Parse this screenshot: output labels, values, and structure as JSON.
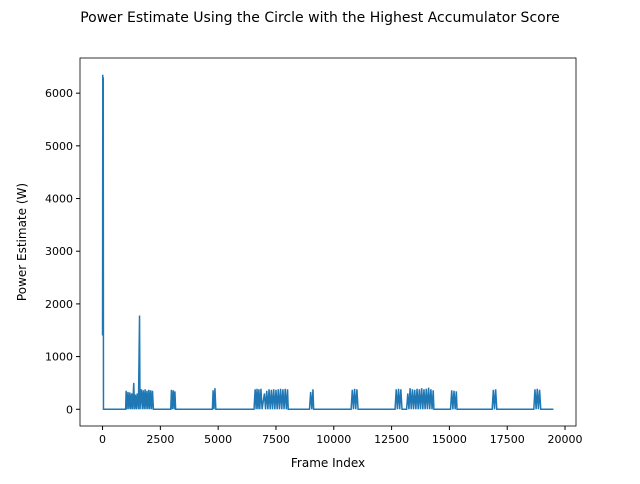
{
  "chart_data": {
    "type": "line",
    "title": "Power Estimate Using the Circle with the Highest Accumulator Score",
    "xlabel": "Frame Index",
    "ylabel": "Power Estimate (W)",
    "x": [
      0,
      10,
      20,
      30,
      40,
      1000,
      1020,
      1060,
      1100,
      1140,
      1180,
      1220,
      1260,
      1300,
      1350,
      1380,
      1420,
      1460,
      1500,
      1550,
      1600,
      1620,
      1680,
      1720,
      1760,
      1800,
      1840,
      1880,
      1920,
      1960,
      2000,
      2040,
      2080,
      2120,
      2160,
      2200,
      2950,
      2980,
      3020,
      3060,
      3100,
      3130,
      3160,
      4750,
      4780,
      4820,
      4860,
      4900,
      6550,
      6600,
      6640,
      6680,
      6720,
      6760,
      6800,
      6850,
      6900,
      7000,
      7050,
      7100,
      7150,
      7200,
      7250,
      7300,
      7350,
      7400,
      7450,
      7500,
      7550,
      7600,
      7650,
      7700,
      7750,
      7800,
      7850,
      7900,
      7950,
      8000,
      8030,
      8950,
      9000,
      9050,
      9100,
      9130,
      10750,
      10800,
      10850,
      10900,
      10950,
      11000,
      11050,
      12650,
      12700,
      12750,
      12800,
      12850,
      12900,
      12950,
      13150,
      13200,
      13250,
      13300,
      13350,
      13400,
      13450,
      13500,
      13550,
      13600,
      13650,
      13700,
      13750,
      13800,
      13850,
      13900,
      13950,
      14000,
      14050,
      14100,
      14150,
      14200,
      14250,
      14300,
      14330,
      15050,
      15100,
      15150,
      15200,
      15250,
      15300,
      15330,
      16850,
      16900,
      16950,
      17000,
      17050,
      18650,
      18700,
      18750,
      18800,
      18850,
      18900,
      18950,
      19500
    ],
    "series": [
      {
        "color": "#1f77b4",
        "values": [
          1400,
          6350,
          1500,
          6300,
          0,
          0,
          350,
          0,
          330,
          0,
          320,
          0,
          300,
          0,
          500,
          0,
          280,
          0,
          300,
          0,
          1780,
          0,
          380,
          0,
          360,
          0,
          380,
          0,
          350,
          0,
          370,
          0,
          360,
          0,
          350,
          0,
          0,
          370,
          0,
          360,
          0,
          340,
          0,
          0,
          360,
          0,
          400,
          0,
          0,
          380,
          0,
          390,
          0,
          380,
          0,
          390,
          0,
          300,
          0,
          350,
          0,
          380,
          0,
          370,
          0,
          380,
          0,
          370,
          0,
          380,
          0,
          390,
          0,
          380,
          0,
          390,
          0,
          380,
          0,
          0,
          330,
          0,
          380,
          0,
          0,
          370,
          0,
          390,
          0,
          380,
          0,
          0,
          380,
          0,
          390,
          0,
          380,
          0,
          0,
          300,
          0,
          400,
          0,
          380,
          0,
          370,
          0,
          390,
          0,
          380,
          0,
          400,
          0,
          380,
          0,
          390,
          0,
          410,
          0,
          380,
          0,
          360,
          0,
          0,
          360,
          0,
          350,
          0,
          340,
          0,
          0,
          370,
          0,
          380,
          0,
          0,
          380,
          0,
          390,
          0,
          370,
          0,
          0
        ]
      }
    ],
    "xlim": [
      -975,
      20475
    ],
    "ylim": [
      -317.5,
      6667.5
    ],
    "xticks": [
      0,
      2500,
      5000,
      7500,
      10000,
      12500,
      15000,
      17500,
      20000
    ],
    "yticks": [
      0,
      1000,
      2000,
      3000,
      4000,
      5000,
      6000
    ]
  }
}
